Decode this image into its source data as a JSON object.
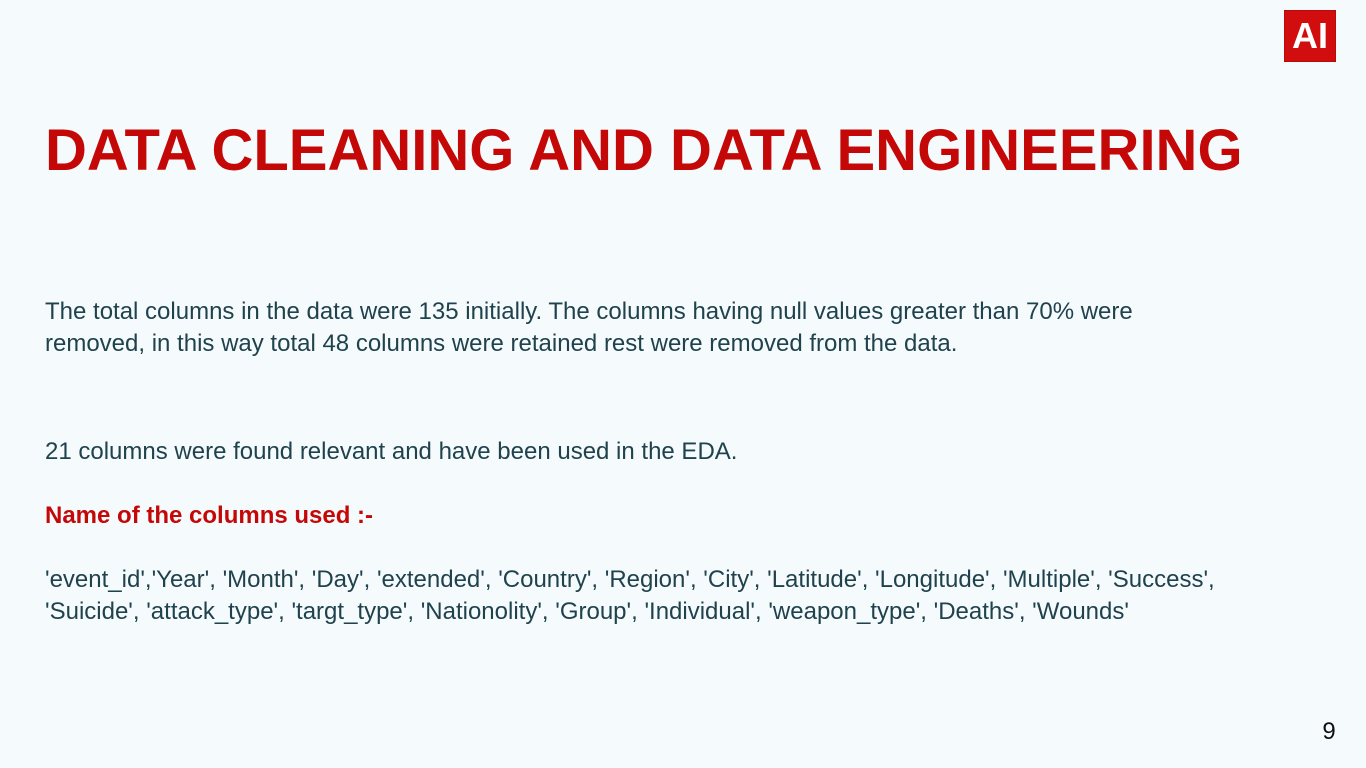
{
  "logo": {
    "text": "AI",
    "background_color": "#d10d0d",
    "text_color": "#ffffff"
  },
  "title": "DATA CLEANING AND DATA ENGINEERING",
  "paragraphs": {
    "columns_summary": "The total columns in the data were 135 initially. The columns having null values greater than 70% were removed, in this way total 48 columns were retained rest were removed from the data.",
    "relevant_columns": "21 columns were found relevant and  have been used in the EDA."
  },
  "columns_section": {
    "label": "Name of the columns used :-",
    "list_text": "'event_id','Year', 'Month', 'Day', 'extended', 'Country', 'Region', 'City', 'Latitude', 'Longitude', 'Multiple', 'Success', 'Suicide', 'attack_type', 'targt_type', 'Nationolity', 'Group', 'Individual', 'weapon_type', 'Deaths', 'Wounds'"
  },
  "page_number": "9",
  "colors": {
    "background": "#f5fbfd",
    "title": "#c40808",
    "body_text": "#20424d"
  }
}
